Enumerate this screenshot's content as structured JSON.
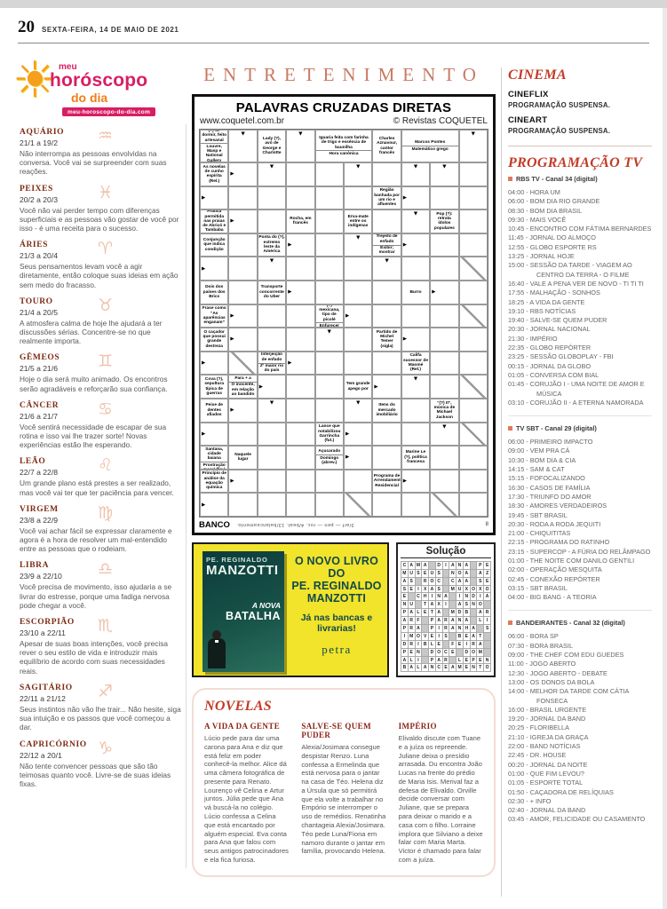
{
  "colors": {
    "accent_red": "#c23b26",
    "entertainment_salmon": "#c87a63",
    "zodiac_glyph": "#eec2ab",
    "logo_pink": "#d81e63",
    "logo_orange": "#ef7d1a",
    "ad_yellow": "#f2e32b",
    "ad_teal": "#10494b",
    "channel_bullet": "#df7b5e"
  },
  "page": {
    "number": "20",
    "date": "SEXTA-FEIRA, 14 DE MAIO DE 2021"
  },
  "horoscope": {
    "logo": {
      "line1": "meu",
      "line2": "horóscopo",
      "line3": "do dia",
      "site": "meu-horoscopo-do-dia.com",
      "sun_glyph": "☀"
    },
    "signs": [
      {
        "name": "AQUÁRIO",
        "dates": "21/1 a 19/2",
        "glyph": "♒",
        "text": "Não interrompa as pessoas envolvidas na conversa. Você vai se surpreender com suas reações."
      },
      {
        "name": "PEIXES",
        "dates": "20/2 a 20/3",
        "glyph": "♓",
        "text": "Você não vai perder tempo com diferenças superficiais e as pessoas vão gostar de você por isso - é uma receita para o sucesso."
      },
      {
        "name": "ÁRIES",
        "dates": "21/3 a 20/4",
        "glyph": "♈",
        "text": "Seus pensamentos levam você a agir diretamente, então coloque suas ideias em ação sem medo do fracasso."
      },
      {
        "name": "TOURO",
        "dates": "21/4 a 20/5",
        "glyph": "♉",
        "text": "A atmosfera calma de hoje lhe ajudará a ter discussões sérias. Concentre-se no que realmente importa."
      },
      {
        "name": "GÊMEOS",
        "dates": "21/5 a 21/6",
        "glyph": "♊",
        "text": "Hoje o dia será muito animado. Os encontros serão agradáveis e reforçarão sua confiança."
      },
      {
        "name": "CÂNCER",
        "dates": "21/6 a 21/7",
        "glyph": "♋",
        "text": "Você sentirá necessidade de escapar de sua rotina e isso vai lhe trazer sorte! Novas experiências estão lhe esperando."
      },
      {
        "name": "LEÃO",
        "dates": "22/7 a 22/8",
        "glyph": "♌",
        "text": "Um grande plano está prestes a ser realizado, mas você vai ter que ter paciência para vencer."
      },
      {
        "name": "VIRGEM",
        "dates": "23/8 a 22/9",
        "glyph": "♍",
        "text": "Você vai achar fácil se expressar claramente e agora é a hora de resolver um mal-entendido entre as pessoas que o rodeiam."
      },
      {
        "name": "LIBRA",
        "dates": "23/9 a 22/10",
        "glyph": "♎",
        "text": "Você precisa de movimento, isso ajudaria a se livrar do estresse, porque uma fadiga nervosa pode chegar a você."
      },
      {
        "name": "ESCORPIÃO",
        "dates": "23/10 a 22/11",
        "glyph": "♏",
        "text": "Apesar de suas boas intenções, você precisa rever o seu estilo de vida e introduzir mais equilíbrio de acordo com suas necessidades reais."
      },
      {
        "name": "SAGITÁRIO",
        "dates": "22/11 a 21/12",
        "glyph": "♐",
        "text": "Seus instintos não vão lhe trair... Não hesite, siga sua intuição e os passos que você começou a dar."
      },
      {
        "name": "CAPRICÓRNIO",
        "dates": "22/12 a 20/1",
        "glyph": "♑",
        "text": "Não tente convencer pessoas que são tão teimosas quanto você. Livre-se de suas ideias fixas."
      }
    ]
  },
  "entertainment": {
    "title": "ENTRETENIMENTO"
  },
  "crossword": {
    "title": "PALAVRAS CRUZADAS DIRETAS",
    "site": "www.coquetel.com.br",
    "copyright": "© Revistas COQUETEL",
    "bank_label": "BANCO",
    "bank_text": "3/arf — pen — roc. 4/beat. 13/balanceamento.",
    "page_mark": "8",
    "cols": 10,
    "rows": 16,
    "cells": [
      {
        "r": 0,
        "c": 0,
        "t": [
          "(?) de dormir, feito artesanal",
          "Louvre, Masp e National Gallery"
        ]
      },
      {
        "r": 0,
        "c": 1,
        "a": "d"
      },
      {
        "r": 0,
        "c": 2,
        "t": [
          "Lady (?), avó de George e Charlotte"
        ]
      },
      {
        "r": 0,
        "c": 3,
        "a": "d"
      },
      {
        "r": 0,
        "c": 4,
        "s": 2,
        "t": [
          "Iguaria feita com farinha de trigo e essência de baunilha",
          "Hora canônica"
        ]
      },
      {
        "r": 0,
        "c": 6,
        "t": [
          "Charles Aznavour, cantor francês"
        ]
      },
      {
        "r": 0,
        "c": 7,
        "s": 2,
        "t": [
          "Marcos Pontes",
          "Matemático grego"
        ]
      },
      {
        "r": 0,
        "c": 9,
        "a": "d"
      },
      {
        "r": 1,
        "c": 0,
        "t": [
          "As novelas de cunho espírita (Rel.)"
        ]
      },
      {
        "r": 1,
        "c": 1,
        "a": "r"
      },
      {
        "r": 1,
        "c": 2,
        "a": "d"
      },
      {
        "r": 1,
        "c": 5,
        "a": "d"
      },
      {
        "r": 1,
        "c": 7,
        "a": "d"
      },
      {
        "r": 1,
        "c": 8,
        "a": "d"
      },
      {
        "r": 2,
        "c": 0,
        "a": "r"
      },
      {
        "r": 2,
        "c": 6,
        "t": [
          "Região banhada por um rio e afluentes"
        ]
      },
      {
        "r": 2,
        "c": 7,
        "a": "r"
      },
      {
        "r": 3,
        "c": 0,
        "t": [
          "Prática permitida nas praias de Abricó e Tambaba"
        ]
      },
      {
        "r": 3,
        "c": 1,
        "a": "r"
      },
      {
        "r": 3,
        "c": 3,
        "t": [
          "Rocha, em francês"
        ]
      },
      {
        "r": 3,
        "c": 5,
        "t": [
          "Erva-mate entre os indígenas"
        ]
      },
      {
        "r": 3,
        "c": 7,
        "a": "d"
      },
      {
        "r": 3,
        "c": 8,
        "t": [
          "Pop (?): retrata ídolos populares"
        ]
      },
      {
        "r": 4,
        "c": 0,
        "t": [
          "Conjunção que indica condição"
        ]
      },
      {
        "r": 4,
        "c": 2,
        "t": [
          "Ponta do (?), extremo leste da América"
        ]
      },
      {
        "r": 4,
        "c": 3,
        "a": "r"
      },
      {
        "r": 4,
        "c": 5,
        "a": "d"
      },
      {
        "r": 4,
        "c": 6,
        "t": [
          "Trejeito de enfado",
          "Exibir; mostrar"
        ]
      },
      {
        "r": 4,
        "c": 7,
        "a": "r"
      },
      {
        "r": 5,
        "c": 0,
        "a": "r"
      },
      {
        "r": 5,
        "c": 2,
        "a": "d"
      },
      {
        "r": 5,
        "c": 6,
        "a": "d"
      },
      {
        "r": 5,
        "c": 9,
        "d": true
      },
      {
        "r": 6,
        "c": 0,
        "t": [
          "Dois dos países dos Brics"
        ]
      },
      {
        "r": 6,
        "c": 2,
        "t": [
          "Transporte concorrente do Uber"
        ]
      },
      {
        "r": 6,
        "c": 3,
        "a": "r"
      },
      {
        "r": 6,
        "c": 7,
        "t": [
          "Burro"
        ]
      },
      {
        "r": 6,
        "c": 8,
        "a": "r"
      },
      {
        "r": 7,
        "c": 0,
        "t": [
          "Frase como “As aparências enganam”"
        ]
      },
      {
        "r": 7,
        "c": 1,
        "a": "r"
      },
      {
        "r": 7,
        "c": 4,
        "t": [
          "(?) mexicana, tipo de picolé",
          "Enfurecer"
        ]
      },
      {
        "r": 7,
        "c": 5,
        "a": "r"
      },
      {
        "r": 7,
        "c": 9,
        "d": true
      },
      {
        "r": 8,
        "c": 0,
        "t": [
          "O caçador que possui grande destreza"
        ]
      },
      {
        "r": 8,
        "c": 1,
        "a": "r"
      },
      {
        "r": 8,
        "c": 4,
        "a": "d"
      },
      {
        "r": 8,
        "c": 6,
        "t": [
          "Partido de Michel Temer (sigla)"
        ]
      },
      {
        "r": 8,
        "c": 7,
        "a": "r"
      },
      {
        "r": 9,
        "c": 0,
        "a": "r"
      },
      {
        "r": 9,
        "c": 1,
        "d": true
      },
      {
        "r": 9,
        "c": 2,
        "t": [
          "Interjeição de enfado",
          "2º maior rio do país"
        ]
      },
      {
        "r": 9,
        "c": 3,
        "a": "r"
      },
      {
        "r": 9,
        "c": 7,
        "t": [
          "Califa sucessor de Maomé (Rel.)"
        ]
      },
      {
        "r": 10,
        "c": 0,
        "t": [
          "Cova (?), sepultura típica de guerras"
        ]
      },
      {
        "r": 10,
        "c": 1,
        "t": [
          "Para + a",
          "O inocente, em relação ao bandido"
        ]
      },
      {
        "r": 10,
        "c": 2,
        "a": "r"
      },
      {
        "r": 10,
        "c": 5,
        "t": [
          "Tem grande apego por"
        ]
      },
      {
        "r": 10,
        "c": 6,
        "a": "r"
      },
      {
        "r": 10,
        "c": 7,
        "a": "d"
      },
      {
        "r": 10,
        "c": 9,
        "d": true
      },
      {
        "r": 11,
        "c": 0,
        "t": [
          "Peixe de dentes afiados"
        ]
      },
      {
        "r": 11,
        "c": 1,
        "a": "r"
      },
      {
        "r": 11,
        "c": 2,
        "a": "d"
      },
      {
        "r": 11,
        "c": 5,
        "a": "d"
      },
      {
        "r": 11,
        "c": 6,
        "t": [
          "Itens do mercado imobiliário"
        ]
      },
      {
        "r": 11,
        "c": 8,
        "t": [
          "“(?) It”, música de Michael Jackson"
        ]
      },
      {
        "r": 12,
        "c": 0,
        "a": "r"
      },
      {
        "r": 12,
        "c": 4,
        "t": [
          "Lance que notabilizou Garrincha (fut.)"
        ]
      },
      {
        "r": 12,
        "c": 5,
        "a": "r"
      },
      {
        "r": 12,
        "c": 8,
        "a": "d"
      },
      {
        "r": 12,
        "c": 9,
        "d": true
      },
      {
        "r": 13,
        "c": 0,
        "t": [
          "(?) de Santana, cidade baiana",
          "Prostração moral (fig.)"
        ]
      },
      {
        "r": 13,
        "c": 1,
        "t": [
          "Naquele lugar"
        ]
      },
      {
        "r": 13,
        "c": 4,
        "t": [
          "Açucarado",
          "Domingo (abrev.)"
        ]
      },
      {
        "r": 13,
        "c": 5,
        "a": "r"
      },
      {
        "r": 13,
        "c": 7,
        "t": [
          "Marine Le (?), política francesa"
        ]
      },
      {
        "r": 14,
        "c": 0,
        "t": [
          "Princípio de análise da equação química"
        ]
      },
      {
        "r": 14,
        "c": 1,
        "a": "r"
      },
      {
        "r": 14,
        "c": 6,
        "t": [
          "Programa de Arrendamento Residencial"
        ]
      },
      {
        "r": 14,
        "c": 7,
        "a": "r"
      },
      {
        "r": 15,
        "c": 0,
        "a": "r"
      },
      {
        "r": 15,
        "c": 5,
        "d": true
      },
      {
        "r": 15,
        "c": 8,
        "d": true
      }
    ]
  },
  "ad": {
    "book_line1": "PE. REGINALDO",
    "book_line2": "MANZOTTI",
    "book_line3": "A NOVA",
    "book_line4": "BATALHA",
    "headline_1": "O NOVO LIVRO DO",
    "headline_2": "PE. REGINALDO",
    "headline_3": "MANZOTTI",
    "tagline": "Já nas bancas e livrarias!",
    "publisher": "petra"
  },
  "solution": {
    "title": "Solução",
    "rows": [
      "CAMA.DIANA.PE",
      "MUSEUS.NOA.AZ",
      "AS.ROC.CAA.SE",
      "SEIXAS.MUXOXO",
      "E.CHINA.INDIA",
      "NU.TAXI.ASNO.",
      "PALETA.MDB.AR",
      "ARF.PARANA.LI",
      "PRA.PIRANHA.S",
      "IMOVEIS.BEAT.",
      "DRIBLE.FEIRA.",
      "PEN.DOCE.DOM.",
      "ALI.PAR.LEPEN",
      "BALANCEAMENTO"
    ]
  },
  "novelas": {
    "title": "NOVELAS",
    "shows": [
      {
        "title": "A VIDA DA GENTE",
        "text": "Lúcio pede para dar uma carona para Ana e diz que está feliz em poder conhecê-la melhor. Alice dá uma câmera fotográfica de presente para Renato. Lourenço vê Celina e Artur juntos. Júlia pede que Ana vá buscá-la no colégio. Lúcio confessa a Celina que está encantado por alguém especial. Eva conta para Ana que falou com seus antigos patrocinadores e ela fica furiosa."
      },
      {
        "title": "SALVE-SE QUEM PUDER",
        "text": "Alexia/Josimara consegue despistar Renzo. Luna confessa a Ermelinda que está nervosa para o jantar na casa de Téo. Helena diz a Úrsula que só permitirá que ela volte a trabalhar no Empório se interromper o uso de remédios. Renatinha chantageia Alexia/Josimara. Téo pede Luna/Fiona em namoro durante o jantar em família, provocando Helena."
      },
      {
        "title": "IMPÉRIO",
        "text": "Elivaldo discute com Tuane e a juíza os repreende. Juliane deixa o presídio arrasada. Du encontra João Lucas na frente do prédio de Maria Isis. Merival faz a defesa de Elivaldo. Orville decide conversar com Juliane, que se prepara para deixar o marido e a casa com o filho. Lorraine implora que Silviano a deixe falar com Maria Marta. Victor é chamado para falar com a juíza."
      }
    ]
  },
  "cinema": {
    "title": "CINEMA",
    "items": [
      {
        "name": "CINEFLIX",
        "status": "PROGRAMAÇÃO SUSPENSA."
      },
      {
        "name": "CINEART",
        "status": "PROGRAMAÇÃO SUSPENSA."
      }
    ]
  },
  "tv": {
    "title": "PROGRAMAÇÃO TV",
    "channels": [
      {
        "name": "RBS TV - Canal 34 (digital)",
        "listings": [
          "04:00 - HORA UM",
          "06:00 - BOM DIA RIO GRANDE",
          "08:30 - BOM DIA BRASIL",
          "09:30 - MAIS VOCÊ",
          "10:45 - ENCONTRO COM FÁTIMA BERNARDES",
          "11:45 - JORNAL DO ALMOÇO",
          "12:55 - GLOBO ESPORTE RS",
          "13:25 - JORNAL HOJE",
          "15:00 - SESSÃO DA TARDE - VIAGEM AO CENTRO DA TERRA - O FILME",
          "16:40 - VALE A PENA VER DE NOVO - TI TI TI",
          "17:55 - MALHAÇÃO - SONHOS",
          "18:25 - A VIDA DA GENTE",
          "19:10 - RBS NOTÍCIAS",
          "19:40 - SALVE-SE QUEM PUDER",
          "20:30 - JORNAL NACIONAL",
          "21:30 - IMPÉRIO",
          "22:35 - GLOBO REPÓRTER",
          "23:25 - SESSÃO GLOBOPLAY - FBI",
          "00:15 - JORNAL DA GLOBO",
          "01:05 - CONVERSA COM BIAL",
          "01:45 - CORUJÃO I - UMA NOITE DE AMOR E MÚSICA",
          "03:10 - CORUJÃO II - A ETERNA NAMORADA"
        ]
      },
      {
        "name": "TV SBT - Canal 29 (digital)",
        "listings": [
          "06:00 - PRIMEIRO IMPACTO",
          "09:00 - VEM PRA CÁ",
          "10:30 - BOM DIA & CIA",
          "14:15 - SAM & CAT",
          "15:15 - FOFOCALIZANDO",
          "16:30 - CASOS DE FAMÍLIA",
          "17:30 - TRIUNFO DO AMOR",
          "18:30 - AMORES VERDADEIROS",
          "19:45 - SBT BRASIL",
          "20:30 - RODA A RODA JEQUITI",
          "21:00 - CHIQUITITAS",
          "22:15 - PROGRAMA DO RATINHO",
          "23:15 - SUPERCOP - A FÚRIA DO RELÂMPAGO",
          "01:00 - THE NOITE COM DANILO GENTILI",
          "02:00 - OPERAÇÃO MESQUITA",
          "02:45 - CONEXÃO REPÓRTER",
          "03:15 - SBT BRASIL",
          "04:00 - BIG BANG - A TEORIA"
        ]
      },
      {
        "name": "BANDEIRANTES - Canal 32 (digital)",
        "listings": [
          "06:00 - BORA SP",
          "07:30 - BORA BRASIL",
          "09:00 - THE CHEF COM EDU GUEDES",
          "11:00 - JOGO ABERTO",
          "12:30 - JOGO ABERTO - DEBATE",
          "13:00 - OS DONOS DA BOLA",
          "14:00 - MELHOR DA TARDE COM CÁTIA FONSECA",
          "16:00 - BRASIL URGENTE",
          "19:20 - JORNAL DA BAND",
          "20:25 - FLORIBELLA",
          "21:10 - IGREJA DA GRAÇA",
          "22:00 - BAND NOTÍCIAS",
          "22:45 - DR. HOUSE",
          "00:20 - JORNAL DA NOITE",
          "01:00 - QUE FIM LEVOU?",
          "01:05 - ESPORTE TOTAL",
          "01:50 - CAÇADORA DE RELÍQUIAS",
          "02:30 - + INFO",
          "02:40 - JORNAL DA BAND",
          "03:45 - AMOR, FELICIDADE OU CASAMENTO"
        ]
      }
    ]
  }
}
